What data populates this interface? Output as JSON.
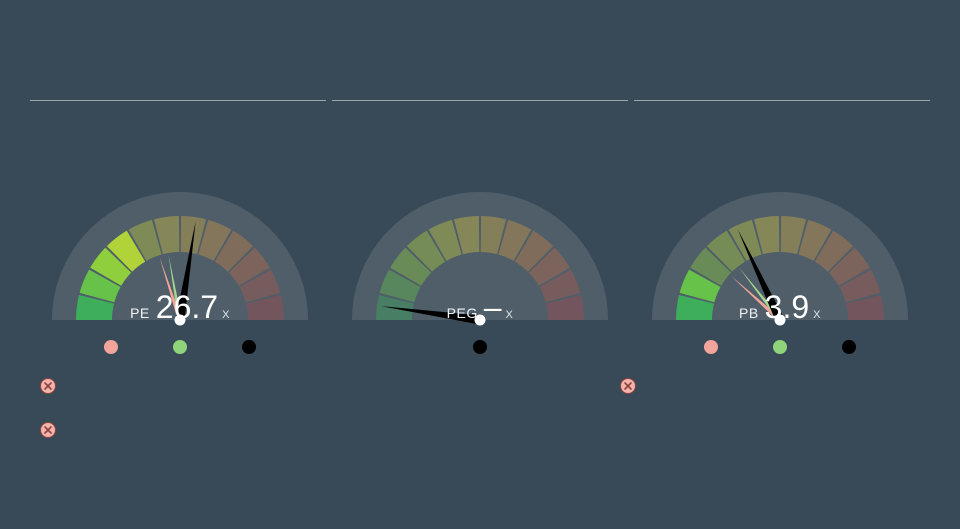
{
  "background_color": "#384957",
  "divider_color": "#9aa6ae",
  "dividers": {
    "count": 3
  },
  "gauge_style": {
    "segment_count": 12,
    "segment_colors": [
      "#3fae5b",
      "#67c24a",
      "#8fcf3d",
      "#b0d33a",
      "#c9cf3a",
      "#d7c53e",
      "#d8b141",
      "#d39a44",
      "#cb8246",
      "#c06d48",
      "#b55b4a",
      "#a94c4c"
    ],
    "inactive_alpha": 0.4,
    "arc_bg": "#4f5e69",
    "inner_radius": 68,
    "outer_radius": 104,
    "center_cap_fill": "#ffffff",
    "needle_primary_color": "#000000",
    "needle_secondary_color": "#f1a49a",
    "needle_tertiary_color": "#a6d68f"
  },
  "gauges": [
    {
      "id": "pe",
      "label": "PE",
      "value": "26.7",
      "suffix": "X",
      "primary_angle_deg": -81,
      "secondary_angle_deg": -108,
      "tertiary_angle_deg": -100,
      "has_secondary": true,
      "has_tertiary": true,
      "active_segments": [
        0,
        1,
        2,
        3
      ],
      "legend_dots": [
        "#f4a59b",
        "#8fd47a",
        "#000000"
      ],
      "show_warning_below": true
    },
    {
      "id": "peg",
      "label": "PEG",
      "value": "–",
      "suffix": "X",
      "primary_angle_deg": -172,
      "secondary_angle_deg": null,
      "tertiary_angle_deg": null,
      "has_secondary": false,
      "has_tertiary": false,
      "active_segments": [],
      "legend_dots": [
        "#000000"
      ],
      "show_warning_below": false
    },
    {
      "id": "pb",
      "label": "PB",
      "value": "3.9",
      "suffix": "X",
      "primary_angle_deg": -115,
      "secondary_angle_deg": -138,
      "tertiary_angle_deg": -128,
      "has_secondary": true,
      "has_tertiary": true,
      "active_segments": [
        0,
        1
      ],
      "legend_dots": [
        "#f4a59b",
        "#8fd47a",
        "#000000"
      ],
      "show_warning_below": true
    }
  ],
  "warning_badge": {
    "bg": "#f1b3ab",
    "stroke": "#8d433a",
    "glyph": "×"
  },
  "bottom_extra_warnings": 1
}
